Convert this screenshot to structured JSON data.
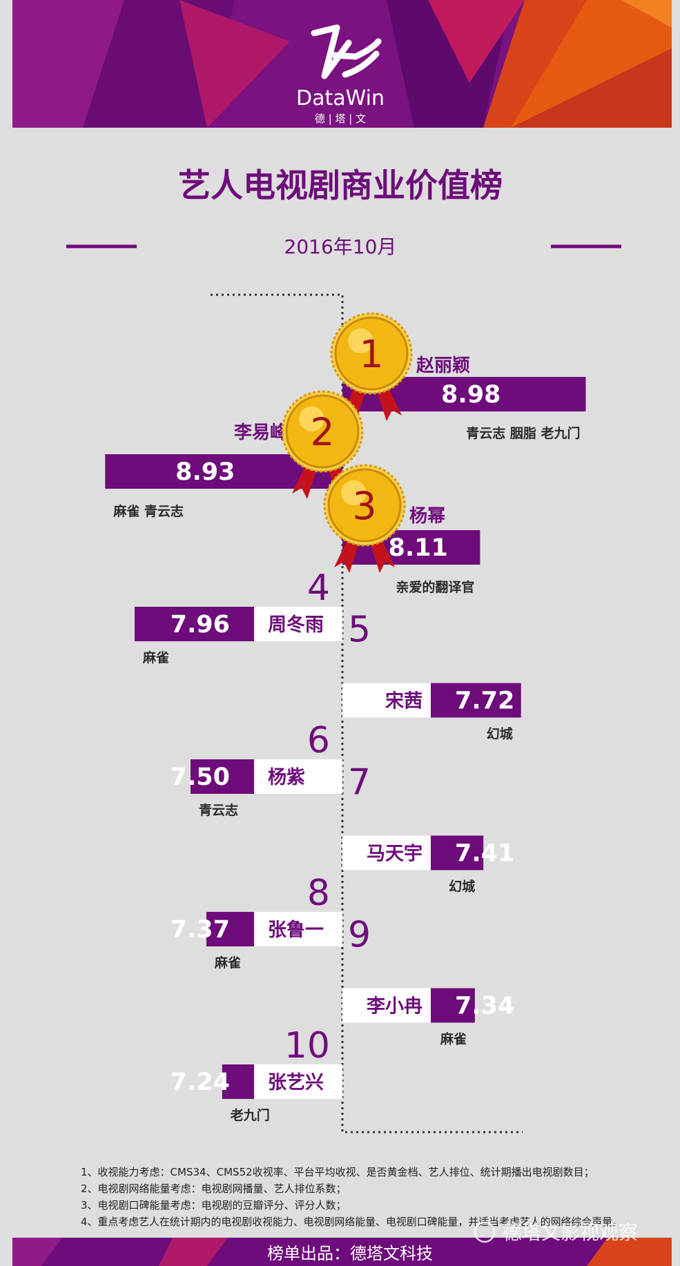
{
  "brand": {
    "name": "DataWin",
    "tagline": "德 | 塔 | 文"
  },
  "title": "艺人电视剧商业价值榜",
  "period": "2016年10月",
  "colors": {
    "purple": "#6d0c7a",
    "bg": "#dedede",
    "gold": "#f2b712",
    "ribbon": "#c4121c",
    "white": "#ffffff",
    "dark_text": "#2b2b2b"
  },
  "chart_data": {
    "type": "bar",
    "title": "艺人电视剧商业价值榜",
    "subtitle": "2016年10月",
    "categories": [
      "赵丽颖",
      "李易峰",
      "杨幂",
      "周冬雨",
      "宋茜",
      "杨紫",
      "马天宇",
      "张鲁一",
      "李小冉",
      "张艺兴"
    ],
    "ranks": [
      "1",
      "2",
      "3",
      "4",
      "5",
      "6",
      "7",
      "8",
      "9",
      "10"
    ],
    "values": [
      8.98,
      8.93,
      8.11,
      7.96,
      7.72,
      7.5,
      7.41,
      7.37,
      7.34,
      7.24
    ],
    "value_labels": [
      "8.98",
      "8.93",
      "8.11",
      "7.96",
      "7.72",
      "7.50",
      "7.41",
      "7.37",
      "7.34",
      "7.24"
    ],
    "works": [
      "青云志 胭脂 老九门",
      "麻雀 青云志",
      "亲爱的翻译官",
      "麻雀",
      "幻城",
      "青云志",
      "幻城",
      "麻雀",
      "麻雀",
      "老九门"
    ]
  },
  "notes": [
    "1、收视能力考虑：CMS34、CMS52收视率、平台平均收视、是否黄金档、艺人排位、统计期播出电视剧数目；",
    "2、电视剧网络能量考虑：电视剧网播量、艺人排位系数；",
    "3、电视剧口碑能量考虑：电视剧的豆瓣评分、评分人数；",
    "4、重点考虑艺人在统计期内的电视剧收视能力、电视剧网络能量、电视剧口碑能量，并适当考虑艺人的网络综合声量。"
  ],
  "footer": "榜单出品：德塔文科技",
  "watermark": "德塔文影视观察"
}
